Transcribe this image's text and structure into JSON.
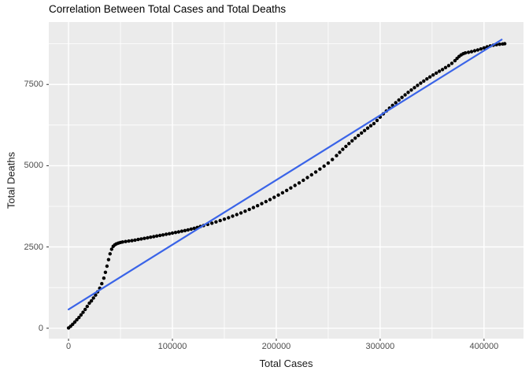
{
  "chart_data": {
    "type": "scatter",
    "title": "Correlation Between Total Cases and Total Deaths",
    "xlabel": "Total Cases",
    "ylabel": "Total Deaths",
    "xlim": [
      -19000,
      438000
    ],
    "ylim": [
      -320,
      9420
    ],
    "grid": "on",
    "legend": "none",
    "x_ticks": {
      "values": [
        0,
        100000,
        200000,
        300000,
        400000
      ],
      "labels": [
        "0",
        "100000",
        "200000",
        "300000",
        "400000"
      ]
    },
    "y_ticks": {
      "values": [
        0,
        2500,
        5000,
        7500
      ],
      "labels": [
        "0",
        "2500",
        "5000",
        "7500"
      ]
    },
    "x_minor": [
      50000,
      150000,
      250000,
      350000
    ],
    "y_minor": [
      1250,
      3750,
      6250,
      8750
    ],
    "colors": {
      "panel_bg": "#EBEBEB",
      "grid_major": "#FFFFFF",
      "grid_minor": "#FFFFFF",
      "point": "#000000",
      "smooth_line": "#3A64E8",
      "axis_text": "#4D4D4D",
      "axis_title": "#1A1A1A",
      "title_text": "#000000",
      "tick_mark": "#333333"
    },
    "smooth_line": {
      "name": "linear-fit",
      "width": 2.2,
      "points": [
        [
          0,
          580
        ],
        [
          417000,
          8880
        ]
      ]
    },
    "series": [
      {
        "name": "cumulative deaths vs cases",
        "point_radius": 2.2,
        "points": [
          [
            0,
            10
          ],
          [
            2000,
            60
          ],
          [
            4000,
            120
          ],
          [
            6000,
            190
          ],
          [
            8000,
            260
          ],
          [
            10000,
            330
          ],
          [
            12000,
            410
          ],
          [
            14000,
            490
          ],
          [
            16000,
            580
          ],
          [
            18000,
            670
          ],
          [
            20000,
            770
          ],
          [
            22000,
            840
          ],
          [
            24000,
            930
          ],
          [
            26000,
            1020
          ],
          [
            28000,
            1120
          ],
          [
            30000,
            1230
          ],
          [
            32000,
            1370
          ],
          [
            34000,
            1540
          ],
          [
            35500,
            1720
          ],
          [
            37000,
            1910
          ],
          [
            38500,
            2110
          ],
          [
            40000,
            2290
          ],
          [
            41500,
            2430
          ],
          [
            43000,
            2520
          ],
          [
            44500,
            2565
          ],
          [
            46000,
            2595
          ],
          [
            48000,
            2618
          ],
          [
            50000,
            2638
          ],
          [
            52000,
            2652
          ],
          [
            55000,
            2668
          ],
          [
            58000,
            2682
          ],
          [
            61000,
            2695
          ],
          [
            64000,
            2712
          ],
          [
            67000,
            2730
          ],
          [
            70000,
            2748
          ],
          [
            73000,
            2765
          ],
          [
            76000,
            2782
          ],
          [
            79000,
            2800
          ],
          [
            82000,
            2818
          ],
          [
            85000,
            2836
          ],
          [
            88000,
            2854
          ],
          [
            91000,
            2872
          ],
          [
            94000,
            2890
          ],
          [
            97000,
            2908
          ],
          [
            100000,
            2926
          ],
          [
            103000,
            2945
          ],
          [
            106000,
            2964
          ],
          [
            109000,
            2984
          ],
          [
            112000,
            3005
          ],
          [
            115000,
            3027
          ],
          [
            118000,
            3050
          ],
          [
            121000,
            3075
          ],
          [
            124000,
            3102
          ],
          [
            127000,
            3130
          ],
          [
            130000,
            3160
          ],
          [
            134000,
            3195
          ],
          [
            138000,
            3232
          ],
          [
            142000,
            3271
          ],
          [
            146000,
            3312
          ],
          [
            150000,
            3355
          ],
          [
            154000,
            3400
          ],
          [
            158000,
            3447
          ],
          [
            162000,
            3496
          ],
          [
            166000,
            3547
          ],
          [
            170000,
            3600
          ],
          [
            174000,
            3655
          ],
          [
            178000,
            3712
          ],
          [
            182000,
            3771
          ],
          [
            186000,
            3832
          ],
          [
            190000,
            3895
          ],
          [
            194000,
            3960
          ],
          [
            198000,
            4027
          ],
          [
            202000,
            4096
          ],
          [
            206000,
            4167
          ],
          [
            210000,
            4240
          ],
          [
            214000,
            4315
          ],
          [
            218000,
            4392
          ],
          [
            222000,
            4471
          ],
          [
            226000,
            4552
          ],
          [
            230000,
            4635
          ],
          [
            234000,
            4720
          ],
          [
            238000,
            4807
          ],
          [
            242000,
            4896
          ],
          [
            246000,
            4987
          ],
          [
            250000,
            5080
          ],
          [
            254000,
            5190
          ],
          [
            258000,
            5310
          ],
          [
            261000,
            5410
          ],
          [
            264000,
            5505
          ],
          [
            267000,
            5595
          ],
          [
            270000,
            5682
          ],
          [
            273000,
            5766
          ],
          [
            276000,
            5848
          ],
          [
            279000,
            5928
          ],
          [
            282000,
            6006
          ],
          [
            285000,
            6082
          ],
          [
            288000,
            6156
          ],
          [
            291000,
            6228
          ],
          [
            294000,
            6298
          ],
          [
            297000,
            6395
          ],
          [
            300000,
            6495
          ],
          [
            303000,
            6595
          ],
          [
            306000,
            6685
          ],
          [
            309000,
            6772
          ],
          [
            312000,
            6857
          ],
          [
            315000,
            6940
          ],
          [
            318000,
            7022
          ],
          [
            321000,
            7102
          ],
          [
            324000,
            7180
          ],
          [
            327000,
            7256
          ],
          [
            330000,
            7330
          ],
          [
            333000,
            7402
          ],
          [
            336000,
            7472
          ],
          [
            339000,
            7540
          ],
          [
            342000,
            7606
          ],
          [
            345000,
            7670
          ],
          [
            348000,
            7732
          ],
          [
            351000,
            7792
          ],
          [
            354000,
            7850
          ],
          [
            357000,
            7906
          ],
          [
            360000,
            7960
          ],
          [
            363000,
            8020
          ],
          [
            366000,
            8080
          ],
          [
            369000,
            8150
          ],
          [
            372000,
            8230
          ],
          [
            374000,
            8300
          ],
          [
            376000,
            8360
          ],
          [
            378000,
            8410
          ],
          [
            380000,
            8445
          ],
          [
            382000,
            8470
          ],
          [
            385000,
            8490
          ],
          [
            388000,
            8510
          ],
          [
            391000,
            8535
          ],
          [
            394000,
            8562
          ],
          [
            397000,
            8592
          ],
          [
            400000,
            8625
          ],
          [
            403000,
            8658
          ],
          [
            406000,
            8686
          ],
          [
            409000,
            8708
          ],
          [
            412000,
            8724
          ],
          [
            415000,
            8736
          ],
          [
            418000,
            8746
          ],
          [
            420000,
            8754
          ]
        ]
      }
    ]
  }
}
